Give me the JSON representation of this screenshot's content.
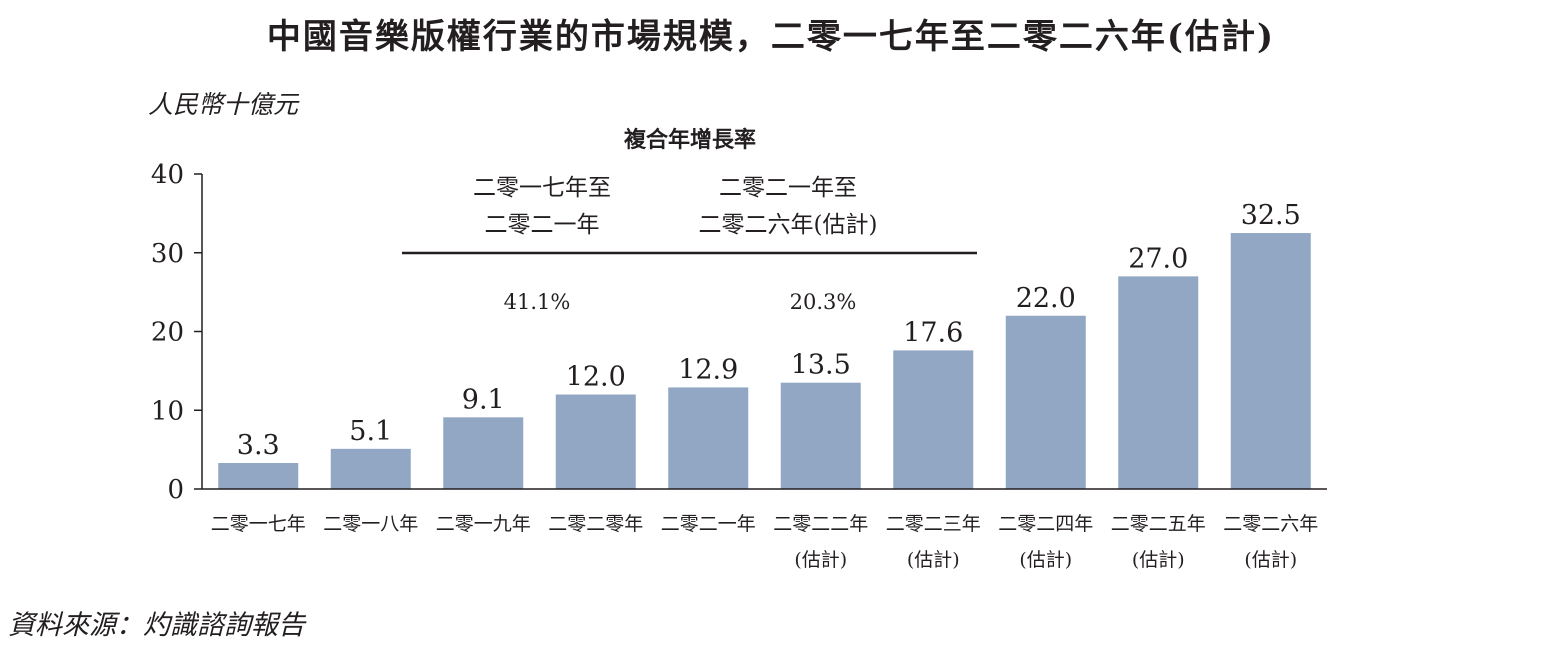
{
  "title": "中國音樂版權行業的市場規模，二零一七年至二零二六年(估計)",
  "unit_label": "人民幣十億元",
  "source": "資料來源：灼識諮詢報告",
  "colors": {
    "bar": "#91a7c4",
    "text": "#231f20",
    "axis": "#231f20"
  },
  "cagr": {
    "header": "複合年增長率",
    "periods": [
      {
        "line1": "二零一七年至",
        "line2": "二零二一年",
        "rate": "41.1%"
      },
      {
        "line1": "二零二一年至",
        "line2": "二零二六年(估計)",
        "rate": "20.3%"
      }
    ]
  },
  "chart_data": {
    "type": "bar",
    "title": "中國音樂版權行業的市場規模，二零一七年至二零二六年(估計)",
    "ylabel": "人民幣十億元",
    "xlabel": "",
    "ylim": [
      0,
      40
    ],
    "yticks": [
      "0",
      "10",
      "20",
      "30",
      "40"
    ],
    "ytick_values": [
      0,
      10,
      20,
      30,
      40
    ],
    "grid": false,
    "categories": [
      {
        "line1": "二零一七年",
        "line2": ""
      },
      {
        "line1": "二零一八年",
        "line2": ""
      },
      {
        "line1": "二零一九年",
        "line2": ""
      },
      {
        "line1": "二零二零年",
        "line2": ""
      },
      {
        "line1": "二零二一年",
        "line2": ""
      },
      {
        "line1": "二零二二年",
        "line2": "(估計)"
      },
      {
        "line1": "二零二三年",
        "line2": "(估計)"
      },
      {
        "line1": "二零二四年",
        "line2": "(估計)"
      },
      {
        "line1": "二零二五年",
        "line2": "(估計)"
      },
      {
        "line1": "二零二六年",
        "line2": "(估計)"
      }
    ],
    "values": [
      3.3,
      5.1,
      9.1,
      12.0,
      12.9,
      13.5,
      17.6,
      22.0,
      27.0,
      32.5
    ],
    "value_labels": [
      "3.3",
      "5.1",
      "9.1",
      "12.0",
      "12.9",
      "13.5",
      "17.6",
      "22.0",
      "27.0",
      "32.5"
    ]
  }
}
